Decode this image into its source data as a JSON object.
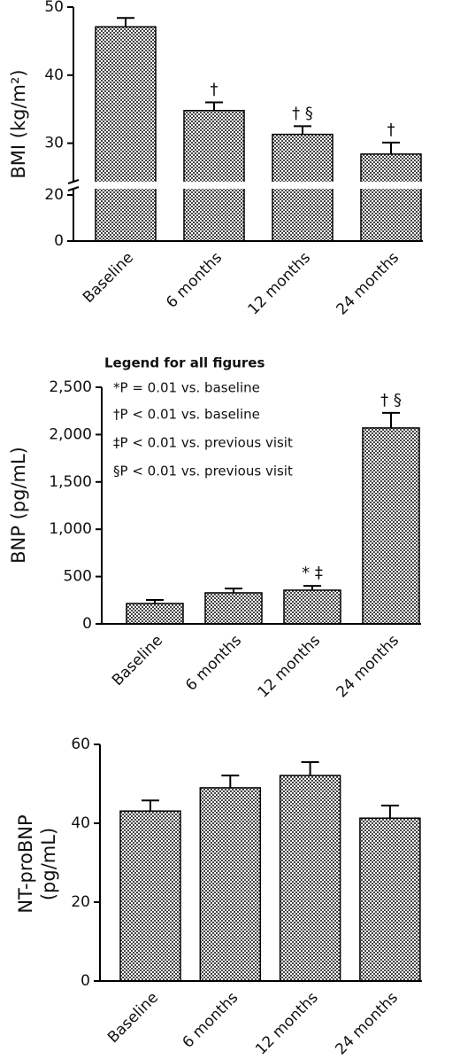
{
  "chart_data": [
    {
      "type": "bar",
      "ylabel": "BMI (kg/m²)",
      "categories": [
        "Baseline",
        "6 months",
        "12 months",
        "24 months"
      ],
      "values": [
        47.1,
        34.8,
        31.3,
        28.4
      ],
      "errors": [
        1.3,
        1.2,
        1.2,
        1.7
      ],
      "annotations": [
        null,
        "†",
        "† §",
        "†"
      ],
      "color": "#444444",
      "ylim": [
        0,
        50
      ],
      "yticks": [
        0,
        20,
        30,
        40,
        50
      ],
      "y_break": [
        20,
        25
      ]
    },
    {
      "type": "bar",
      "ylabel": "BNP (pg/mL)",
      "legend_title": "Legend for all figures",
      "legend_items": [
        "*P = 0.01 vs. baseline",
        "†P < 0.01 vs. baseline",
        "‡P < 0.01 vs. previous visit",
        "§P < 0.01 vs. previous visit"
      ],
      "categories": [
        "Baseline",
        "6 months",
        "12 months",
        "24 months"
      ],
      "values": [
        215,
        328,
        356,
        2070
      ],
      "errors": [
        38,
        45,
        45,
        160
      ],
      "annotations": [
        null,
        null,
        "* ‡",
        "† §"
      ],
      "color": "#444444",
      "ylim": [
        0,
        2500
      ],
      "yticks": [
        0,
        500,
        {
          "value": 1000,
          "label": "1,000"
        },
        {
          "value": 1500,
          "label": "1,500"
        },
        {
          "value": 2000,
          "label": "2,000"
        },
        {
          "value": 2500,
          "label": "2,500"
        }
      ]
    },
    {
      "type": "bar",
      "ylabel": [
        "NT-proBNP",
        "(pg/mL)"
      ],
      "categories": [
        "Baseline",
        "6 months",
        "12 months",
        "24 months"
      ],
      "values": [
        43.1,
        49.0,
        52.1,
        41.3
      ],
      "errors": [
        2.7,
        3.1,
        3.4,
        3.2
      ],
      "color": "#444444",
      "ylim": [
        0,
        60
      ],
      "yticks": [
        0,
        20,
        40,
        60
      ]
    }
  ]
}
